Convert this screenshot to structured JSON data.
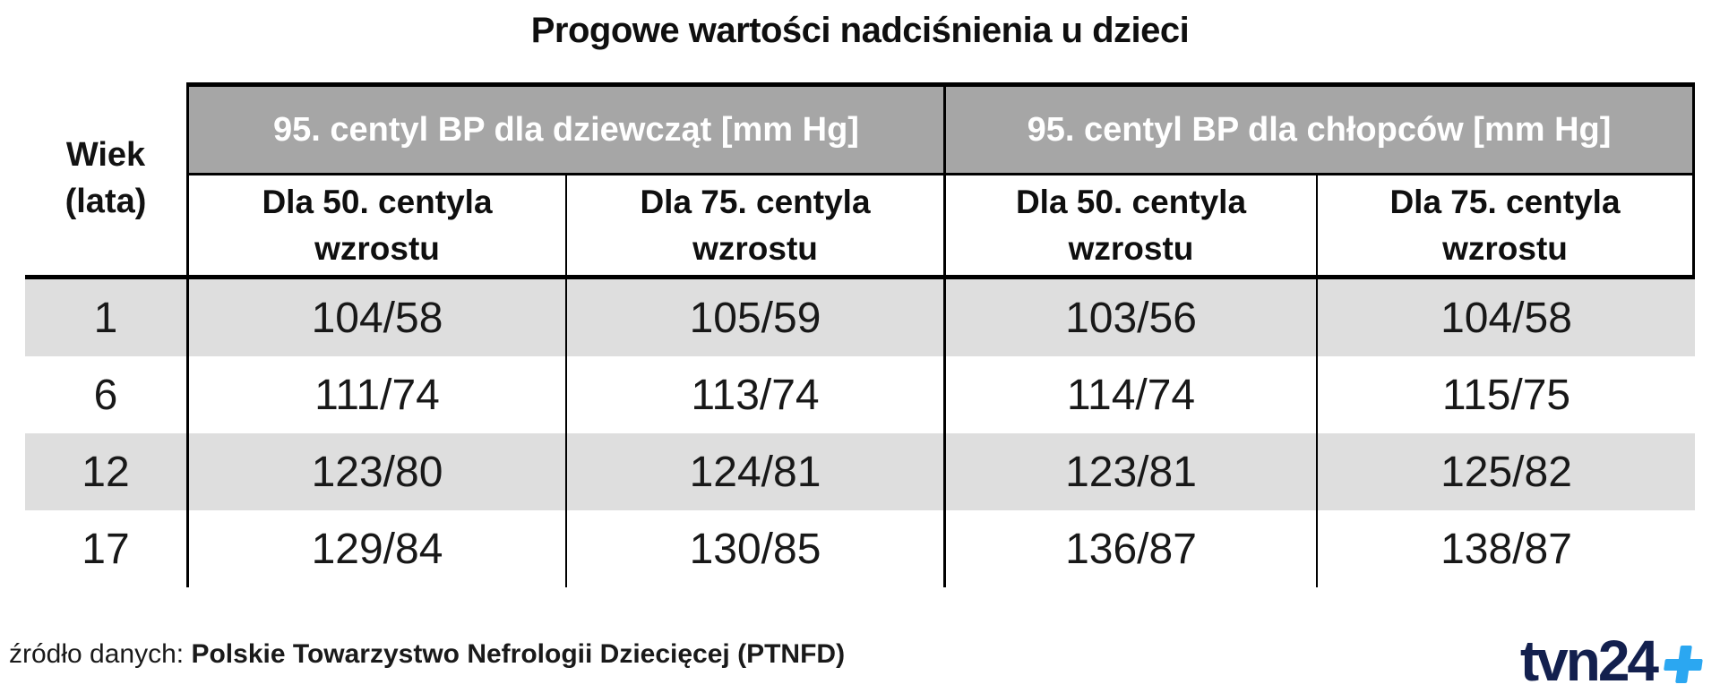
{
  "chart_data": {
    "type": "table",
    "title": "Progowe wartości nadciśnienia u dzieci",
    "row_header": "Wiek (lata)",
    "column_groups": [
      {
        "label": "95. centyl BP dla dziewcząt [mm Hg]",
        "columns": [
          "Dla 50. centyla wzrostu",
          "Dla 75. centyla wzrostu"
        ]
      },
      {
        "label": "95. centyl BP dla chłopców [mm Hg]",
        "columns": [
          "Dla 50. centyla wzrostu",
          "Dla 75. centyla wzrostu"
        ]
      }
    ],
    "rows": [
      {
        "age": "1",
        "values": [
          "104/58",
          "105/59",
          "103/56",
          "104/58"
        ]
      },
      {
        "age": "6",
        "values": [
          "111/74",
          "113/74",
          "114/74",
          "115/75"
        ]
      },
      {
        "age": "12",
        "values": [
          "123/80",
          "124/81",
          "123/81",
          "125/82"
        ]
      },
      {
        "age": "17",
        "values": [
          "129/84",
          "130/85",
          "136/87",
          "138/87"
        ]
      }
    ],
    "units": "mm Hg",
    "layout": {
      "striped_rows": [
        0,
        2
      ],
      "grid": "vertical-lines-only-in-body"
    }
  },
  "footer": {
    "source_label": "źródło danych:",
    "source_value": "Polskie Towarzystwo Nefrologii Dziecięcej (PTNFD)"
  },
  "logo": {
    "text": "tvn24",
    "plus": "+"
  },
  "colors": {
    "group_header_bg": "#a6a6a6",
    "group_header_text": "#ffffff",
    "row_stripe_bg": "#dedede",
    "border": "#000000",
    "logo_navy": "#13204e",
    "logo_blue": "#2ba7f1"
  }
}
